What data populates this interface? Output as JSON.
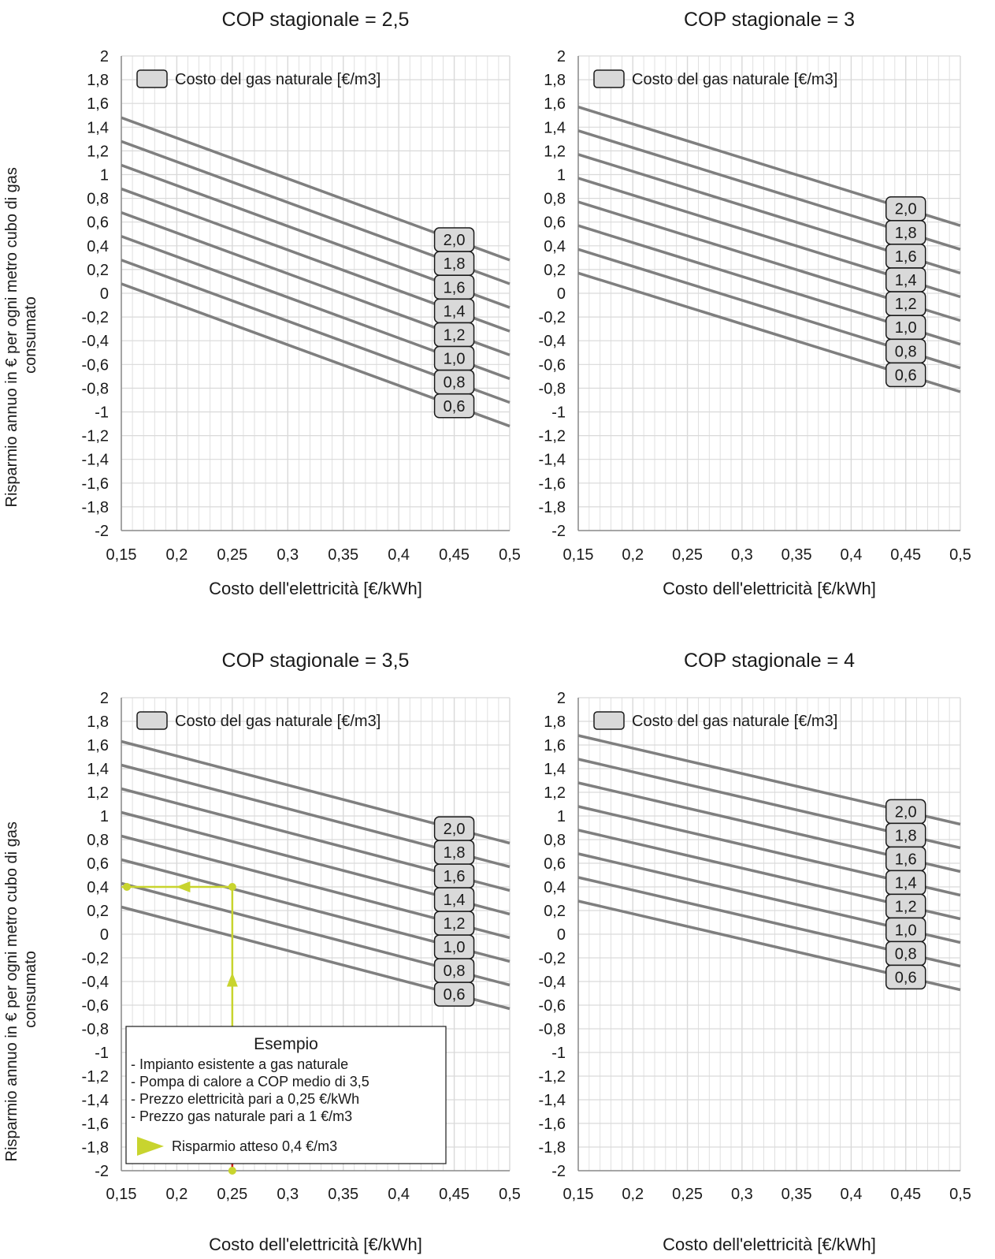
{
  "figure": {
    "ylabel_lines": [
      "Risparmio annuo in € per ogni metro cubo di gas",
      "consumato"
    ]
  },
  "colors": {
    "grid": "#d9d9d9",
    "axis": "#8c8c8c",
    "series_line": "#7f7f7f",
    "label_box_fill": "#d9d9d9",
    "example_color": "#c8d42e",
    "example_endpoint": "#d42020"
  },
  "chart_data": [
    {
      "type": "line",
      "title": "COP stagionale = 2,5",
      "xlabel": "Costo dell'elettricità [€/kWh]",
      "ylabel": "Risparmio annuo in € per ogni metro cubo di gas consumato",
      "xlim": [
        0.15,
        0.5
      ],
      "ylim": [
        -2,
        2
      ],
      "x_ticks": [
        "0,15",
        "0,2",
        "0,25",
        "0,3",
        "0,35",
        "0,4",
        "0,45",
        "0,5"
      ],
      "y_ticks": [
        "2",
        "1,8",
        "1,6",
        "1,4",
        "1,2",
        "1",
        "0,8",
        "0,6",
        "0,4",
        "0,2",
        "0",
        "-0,2",
        "-0,4",
        "-0,6",
        "-0,8",
        "-1",
        "-1,2",
        "-1,4",
        "-1,6",
        "-1,8",
        "-2"
      ],
      "legend": {
        "label": "Costo del gas naturale [€/m3]",
        "position": "top-left"
      },
      "grid": true,
      "series": [
        {
          "name": "2,0",
          "x": [
            0.15,
            0.5
          ],
          "y": [
            1.48,
            0.28
          ]
        },
        {
          "name": "1,8",
          "x": [
            0.15,
            0.5
          ],
          "y": [
            1.28,
            0.08
          ]
        },
        {
          "name": "1,6",
          "x": [
            0.15,
            0.5
          ],
          "y": [
            1.08,
            -0.12
          ]
        },
        {
          "name": "1,4",
          "x": [
            0.15,
            0.5
          ],
          "y": [
            0.88,
            -0.32
          ]
        },
        {
          "name": "1,2",
          "x": [
            0.15,
            0.5
          ],
          "y": [
            0.68,
            -0.52
          ]
        },
        {
          "name": "1,0",
          "x": [
            0.15,
            0.5
          ],
          "y": [
            0.48,
            -0.72
          ]
        },
        {
          "name": "0,8",
          "x": [
            0.15,
            0.5
          ],
          "y": [
            0.28,
            -0.92
          ]
        },
        {
          "name": "0,6",
          "x": [
            0.15,
            0.5
          ],
          "y": [
            0.08,
            -1.12
          ]
        }
      ],
      "label_x": 0.45
    },
    {
      "type": "line",
      "title": "COP stagionale = 3",
      "xlabel": "Costo dell'elettricità [€/kWh]",
      "ylabel": "",
      "xlim": [
        0.15,
        0.5
      ],
      "ylim": [
        -2,
        2
      ],
      "x_ticks": [
        "0,15",
        "0,2",
        "0,25",
        "0,3",
        "0,35",
        "0,4",
        "0,45",
        "0,5"
      ],
      "y_ticks": [
        "2",
        "1,8",
        "1,6",
        "1,4",
        "1,2",
        "1",
        "0,8",
        "0,6",
        "0,4",
        "0,2",
        "0",
        "-0,2",
        "-0,4",
        "-0,6",
        "-0,8",
        "-1",
        "-1,2",
        "-1,4",
        "-1,6",
        "-1,8",
        "-2"
      ],
      "legend": {
        "label": "Costo del gas naturale [€/m3]",
        "position": "top-left"
      },
      "grid": true,
      "series": [
        {
          "name": "2,0",
          "x": [
            0.15,
            0.5
          ],
          "y": [
            1.57,
            0.57
          ]
        },
        {
          "name": "1,8",
          "x": [
            0.15,
            0.5
          ],
          "y": [
            1.37,
            0.37
          ]
        },
        {
          "name": "1,6",
          "x": [
            0.15,
            0.5
          ],
          "y": [
            1.17,
            0.17
          ]
        },
        {
          "name": "1,4",
          "x": [
            0.15,
            0.5
          ],
          "y": [
            0.97,
            -0.03
          ]
        },
        {
          "name": "1,2",
          "x": [
            0.15,
            0.5
          ],
          "y": [
            0.77,
            -0.23
          ]
        },
        {
          "name": "1,0",
          "x": [
            0.15,
            0.5
          ],
          "y": [
            0.57,
            -0.43
          ]
        },
        {
          "name": "0,8",
          "x": [
            0.15,
            0.5
          ],
          "y": [
            0.37,
            -0.63
          ]
        },
        {
          "name": "0,6",
          "x": [
            0.15,
            0.5
          ],
          "y": [
            0.17,
            -0.83
          ]
        }
      ],
      "label_x": 0.45
    },
    {
      "type": "line",
      "title": "COP stagionale = 3,5",
      "xlabel": "Costo dell'elettricità [€/kWh]",
      "ylabel": "Risparmio annuo in € per ogni metro cubo di gas consumato",
      "xlim": [
        0.15,
        0.5
      ],
      "ylim": [
        -2,
        2
      ],
      "x_ticks": [
        "0,15",
        "0,2",
        "0,25",
        "0,3",
        "0,35",
        "0,4",
        "0,45",
        "0,5"
      ],
      "y_ticks": [
        "2",
        "1,8",
        "1,6",
        "1,4",
        "1,2",
        "1",
        "0,8",
        "0,6",
        "0,4",
        "0,2",
        "0",
        "-0,2",
        "-0,4",
        "-0,6",
        "-0,8",
        "-1",
        "-1,2",
        "-1,4",
        "-1,6",
        "-1,8",
        "-2"
      ],
      "legend": {
        "label": "Costo del gas naturale [€/m3]",
        "position": "top-left"
      },
      "grid": true,
      "series": [
        {
          "name": "2,0",
          "x": [
            0.15,
            0.5
          ],
          "y": [
            1.63,
            0.77
          ]
        },
        {
          "name": "1,8",
          "x": [
            0.15,
            0.5
          ],
          "y": [
            1.43,
            0.57
          ]
        },
        {
          "name": "1,6",
          "x": [
            0.15,
            0.5
          ],
          "y": [
            1.23,
            0.37
          ]
        },
        {
          "name": "1,4",
          "x": [
            0.15,
            0.5
          ],
          "y": [
            1.03,
            0.17
          ]
        },
        {
          "name": "1,2",
          "x": [
            0.15,
            0.5
          ],
          "y": [
            0.83,
            -0.03
          ]
        },
        {
          "name": "1,0",
          "x": [
            0.15,
            0.5
          ],
          "y": [
            0.63,
            -0.23
          ]
        },
        {
          "name": "0,8",
          "x": [
            0.15,
            0.5
          ],
          "y": [
            0.43,
            -0.43
          ]
        },
        {
          "name": "0,6",
          "x": [
            0.15,
            0.5
          ],
          "y": [
            0.23,
            -0.63
          ]
        }
      ],
      "label_x": 0.45,
      "example": {
        "title": "Esempio",
        "lines": [
          "- Impianto esistente a gas naturale",
          "- Pompa di calore a COP medio di 3,5",
          "- Prezzo elettricità pari a 0,25 €/kWh",
          "- Prezzo gas naturale pari a 1 €/m3"
        ],
        "result_label": "Risparmio atteso 0,4 €/m3",
        "electricity_price": 0.25,
        "expected_saving": 0.4
      }
    },
    {
      "type": "line",
      "title": "COP stagionale = 4",
      "xlabel": "Costo dell'elettricità [€/kWh]",
      "ylabel": "",
      "xlim": [
        0.15,
        0.5
      ],
      "ylim": [
        -2,
        2
      ],
      "x_ticks": [
        "0,15",
        "0,2",
        "0,25",
        "0,3",
        "0,35",
        "0,4",
        "0,45",
        "0,5"
      ],
      "y_ticks": [
        "2",
        "1,8",
        "1,6",
        "1,4",
        "1,2",
        "1",
        "0,8",
        "0,6",
        "0,4",
        "0,2",
        "0",
        "-0,2",
        "-0,4",
        "-0,6",
        "-0,8",
        "-1",
        "-1,2",
        "-1,4",
        "-1,6",
        "-1,8",
        "-2"
      ],
      "legend": {
        "label": "Costo del gas naturale [€/m3]",
        "position": "top-left"
      },
      "grid": true,
      "series": [
        {
          "name": "2,0",
          "x": [
            0.15,
            0.5
          ],
          "y": [
            1.68,
            0.93
          ]
        },
        {
          "name": "1,8",
          "x": [
            0.15,
            0.5
          ],
          "y": [
            1.48,
            0.73
          ]
        },
        {
          "name": "1,6",
          "x": [
            0.15,
            0.5
          ],
          "y": [
            1.28,
            0.53
          ]
        },
        {
          "name": "1,4",
          "x": [
            0.15,
            0.5
          ],
          "y": [
            1.08,
            0.33
          ]
        },
        {
          "name": "1,2",
          "x": [
            0.15,
            0.5
          ],
          "y": [
            0.88,
            0.13
          ]
        },
        {
          "name": "1,0",
          "x": [
            0.15,
            0.5
          ],
          "y": [
            0.68,
            -0.07
          ]
        },
        {
          "name": "0,8",
          "x": [
            0.15,
            0.5
          ],
          "y": [
            0.48,
            -0.27
          ]
        },
        {
          "name": "0,6",
          "x": [
            0.15,
            0.5
          ],
          "y": [
            0.28,
            -0.47
          ]
        }
      ],
      "label_x": 0.45
    }
  ]
}
